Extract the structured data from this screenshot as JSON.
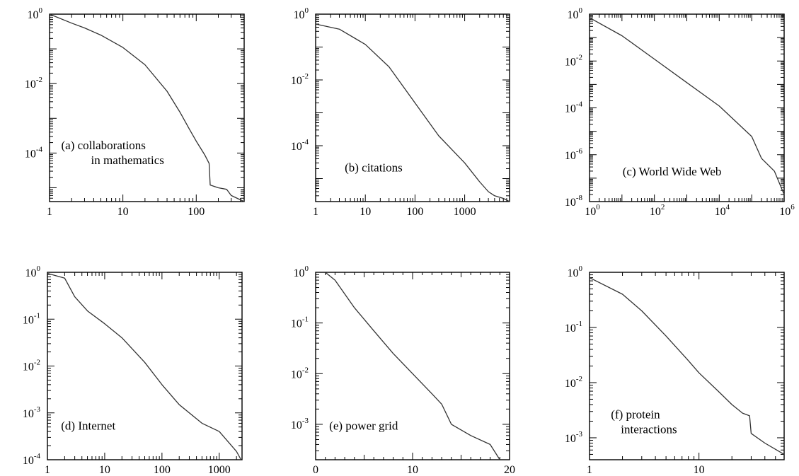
{
  "chart_data": [
    {
      "type": "line",
      "annotation": [
        "(a) collaborations",
        "in mathematics"
      ],
      "xscale": "log",
      "yscale": "log",
      "xlim": [
        1,
        450
      ],
      "ylim": [
        4e-06,
        1
      ],
      "x_tick_labels": [
        {
          "value": 1,
          "text": "1"
        },
        {
          "value": 10,
          "text": "10"
        },
        {
          "value": 100,
          "text": "100"
        }
      ],
      "y_tick_labels": [
        {
          "value": 1,
          "base": "10",
          "exp": "0"
        },
        {
          "value": 0.01,
          "base": "10",
          "exp": "-2"
        },
        {
          "value": 0.0001,
          "base": "10",
          "exp": "-4"
        }
      ],
      "series": [
        {
          "x": [
            1,
            2,
            3,
            5,
            10,
            20,
            40,
            60,
            80,
            100,
            130,
            150,
            155,
            200,
            260,
            300,
            450
          ],
          "y": [
            1,
            0.55,
            0.4,
            0.25,
            0.11,
            0.035,
            0.006,
            0.0015,
            0.0005,
            0.00022,
            9e-05,
            5e-05,
            1.2e-05,
            1e-05,
            9e-06,
            6e-06,
            4e-06
          ]
        }
      ]
    },
    {
      "type": "line",
      "annotation": [
        "(b) citations"
      ],
      "xscale": "log",
      "yscale": "log",
      "xlim": [
        1,
        8000
      ],
      "ylim": [
        2e-06,
        1
      ],
      "x_tick_labels": [
        {
          "value": 1,
          "text": "1"
        },
        {
          "value": 10,
          "text": "10"
        },
        {
          "value": 100,
          "text": "100"
        },
        {
          "value": 1000,
          "text": "1000"
        }
      ],
      "y_tick_labels": [
        {
          "value": 1,
          "base": "10",
          "exp": "0"
        },
        {
          "value": 0.01,
          "base": "10",
          "exp": "-2"
        },
        {
          "value": 0.0001,
          "base": "10",
          "exp": "-4"
        }
      ],
      "series": [
        {
          "x": [
            1,
            3,
            10,
            30,
            100,
            300,
            1000,
            2000,
            3000,
            4000,
            6000,
            8000
          ],
          "y": [
            0.5,
            0.35,
            0.12,
            0.025,
            0.002,
            0.0002,
            3e-05,
            8e-06,
            4e-06,
            3e-06,
            2.5e-06,
            2e-06
          ]
        }
      ]
    },
    {
      "type": "line",
      "annotation": [
        "(c) World Wide Web"
      ],
      "xscale": "log",
      "yscale": "log",
      "xlim": [
        1,
        1000000
      ],
      "ylim": [
        1e-08,
        1
      ],
      "x_tick_labels": [
        {
          "value": 1,
          "base": "10",
          "exp": "0"
        },
        {
          "value": 100,
          "base": "10",
          "exp": "2"
        },
        {
          "value": 10000,
          "base": "10",
          "exp": "4"
        },
        {
          "value": 1000000,
          "base": "10",
          "exp": "6"
        }
      ],
      "y_tick_labels": [
        {
          "value": 1,
          "base": "10",
          "exp": "0"
        },
        {
          "value": 0.01,
          "base": "10",
          "exp": "-2"
        },
        {
          "value": 0.0001,
          "base": "10",
          "exp": "-4"
        },
        {
          "value": 1e-06,
          "base": "10",
          "exp": "-6"
        },
        {
          "value": 1e-08,
          "base": "10",
          "exp": "-8"
        }
      ],
      "series": [
        {
          "x": [
            1,
            10,
            100,
            1000,
            10000,
            100000,
            200000,
            500000,
            1000000
          ],
          "y": [
            0.7,
            0.12,
            0.012,
            0.0012,
            0.00012,
            6e-06,
            7e-07,
            2e-07,
            2e-08
          ]
        }
      ]
    },
    {
      "type": "line",
      "annotation": [
        "(d) Internet"
      ],
      "xscale": "log",
      "yscale": "log",
      "xlim": [
        1,
        2500
      ],
      "ylim": [
        0.0001,
        1
      ],
      "x_tick_labels": [
        {
          "value": 1,
          "text": "1"
        },
        {
          "value": 10,
          "text": "10"
        },
        {
          "value": 100,
          "text": "100"
        },
        {
          "value": 1000,
          "text": "1000"
        }
      ],
      "y_tick_labels": [
        {
          "value": 1,
          "base": "10",
          "exp": "0"
        },
        {
          "value": 0.1,
          "base": "10",
          "exp": "-1"
        },
        {
          "value": 0.01,
          "base": "10",
          "exp": "-2"
        },
        {
          "value": 0.001,
          "base": "10",
          "exp": "-3"
        },
        {
          "value": 0.0001,
          "base": "10",
          "exp": "-4"
        }
      ],
      "series": [
        {
          "x": [
            1,
            2,
            3,
            5,
            10,
            20,
            50,
            100,
            200,
            500,
            1000,
            2000,
            2400
          ],
          "y": [
            0.95,
            0.75,
            0.3,
            0.15,
            0.08,
            0.04,
            0.012,
            0.004,
            0.0015,
            0.0006,
            0.0004,
            0.00015,
            0.0001
          ]
        }
      ]
    },
    {
      "type": "line",
      "annotation": [
        "(e) power grid"
      ],
      "xscale": "linear",
      "yscale": "log",
      "xlim": [
        0,
        20
      ],
      "ylim": [
        0.0002,
        1
      ],
      "x_tick_labels": [
        {
          "value": 0,
          "text": "0"
        },
        {
          "value": 10,
          "text": "10"
        },
        {
          "value": 20,
          "text": "20"
        }
      ],
      "y_tick_labels": [
        {
          "value": 1,
          "base": "10",
          "exp": "0"
        },
        {
          "value": 0.1,
          "base": "10",
          "exp": "-1"
        },
        {
          "value": 0.01,
          "base": "10",
          "exp": "-2"
        },
        {
          "value": 0.001,
          "base": "10",
          "exp": "-3"
        }
      ],
      "series": [
        {
          "x": [
            1,
            2,
            4,
            6,
            8,
            10,
            12,
            13,
            14,
            16,
            18,
            19
          ],
          "y": [
            1,
            0.7,
            0.2,
            0.07,
            0.025,
            0.01,
            0.004,
            0.0025,
            0.001,
            0.0006,
            0.0004,
            0.0002
          ]
        }
      ]
    },
    {
      "type": "line",
      "annotation": [
        "(f) protein",
        "interactions"
      ],
      "xscale": "log",
      "yscale": "log",
      "xlim": [
        1,
        60
      ],
      "ylim": [
        0.0004,
        1
      ],
      "x_tick_labels": [
        {
          "value": 1,
          "text": "1"
        },
        {
          "value": 10,
          "text": "10"
        }
      ],
      "y_tick_labels": [
        {
          "value": 1,
          "base": "10",
          "exp": "0"
        },
        {
          "value": 0.1,
          "base": "10",
          "exp": "-1"
        },
        {
          "value": 0.01,
          "base": "10",
          "exp": "-2"
        },
        {
          "value": 0.001,
          "base": "10",
          "exp": "-3"
        }
      ],
      "series": [
        {
          "x": [
            1,
            2,
            3,
            5,
            8,
            10,
            15,
            20,
            25,
            29,
            30,
            40,
            60
          ],
          "y": [
            0.8,
            0.4,
            0.2,
            0.07,
            0.025,
            0.015,
            0.007,
            0.004,
            0.0028,
            0.0025,
            0.0012,
            0.0008,
            0.0005
          ]
        }
      ]
    }
  ]
}
